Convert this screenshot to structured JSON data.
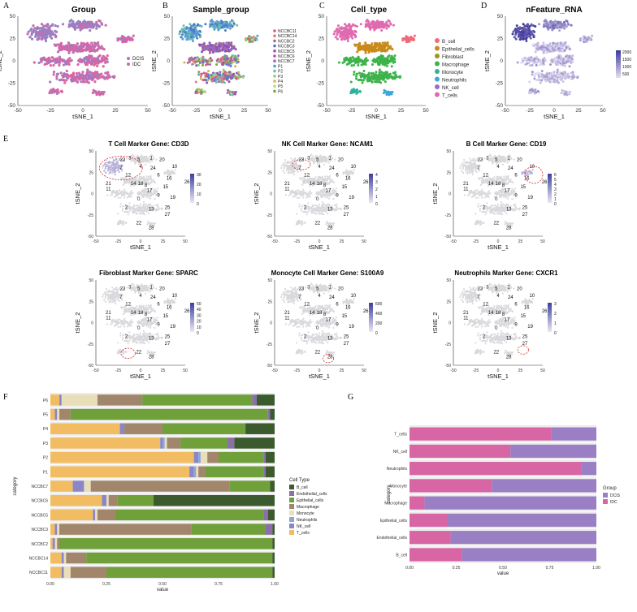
{
  "colors": {
    "DCIS": "#9b7fc4",
    "IDC": "#d866a4",
    "B_cell": "#3b5a2e",
    "Endothelial_cells": "#8a6fa8",
    "Epithelial_cells": "#6fa03a",
    "Macrophage": "#a2866c",
    "Monocyte": "#e8dfb8",
    "Neutrophils": "#8fa6d4",
    "NK_cell": "#8a86c8",
    "T_cells": "#f2bc62",
    "Fibroblast": "#c88a1a"
  },
  "panels": {
    "A": {
      "letter": "A",
      "title": "Group",
      "legend": [
        "DCIS",
        "IDC"
      ]
    },
    "B": {
      "letter": "B",
      "title": "Sample_group",
      "legend": [
        "NCCBC11",
        "NCCBC14",
        "NCCBC2",
        "NCCBC3",
        "NCCBC5",
        "NCCBC6",
        "NCCBC7",
        "P1",
        "P2",
        "P3",
        "P4",
        "P5",
        "P6"
      ],
      "legend_colors": [
        "#e05a77",
        "#d97a8f",
        "#a8698f",
        "#4a7cc9",
        "#8c55b8",
        "#c64a9a",
        "#9a6bc4",
        "#5b9bd5",
        "#6ec0ae",
        "#8ccf6a",
        "#c8b85a",
        "#b0e07a",
        "#7aa84a"
      ]
    },
    "C": {
      "letter": "C",
      "title": "Cell_type",
      "legend": [
        "B_cell",
        "Epithelial_cells",
        "Fibroblast",
        "Macrophage",
        "Monocyte",
        "Neutrophils",
        "NK_cell",
        "T_cells"
      ],
      "legend_colors": [
        "#ee6b7a",
        "#c88a1a",
        "#9a9a1a",
        "#3db34a",
        "#2cb39a",
        "#3aa8d8",
        "#9c6ad0",
        "#e06ab0"
      ]
    },
    "D": {
      "letter": "D",
      "title": "nFeature_RNA",
      "scale_ticks": [
        "2000",
        "1500",
        "1000",
        "500"
      ]
    },
    "E": {
      "letter": "E"
    },
    "F": {
      "letter": "F"
    },
    "G": {
      "letter": "G"
    }
  },
  "axes": {
    "tsne_x": "tSNE_1",
    "tsne_y": "tSNE_2",
    "xticks": [
      "-50",
      "-25",
      "0",
      "25",
      "50"
    ],
    "yticks": [
      "50",
      "25",
      "0",
      "-25",
      "-50"
    ],
    "value_label": "value",
    "category_label": "category"
  },
  "marker_panels": [
    {
      "title": "T Cell Marker Gene: CD3D",
      "scale": [
        "30",
        "20",
        "10",
        "0"
      ]
    },
    {
      "title": "NK Cell Marker Gene: NCAM1",
      "scale": [
        "4",
        "3",
        "2",
        "1",
        "0"
      ]
    },
    {
      "title": "B Cell Marker Gene: CD19",
      "scale": [
        "6",
        "5",
        "4",
        "3",
        "2",
        "1",
        "0"
      ]
    },
    {
      "title": "Fibroblast Marker Gene: SPARC",
      "scale": [
        "50",
        "40",
        "30",
        "20",
        "10",
        "0"
      ]
    },
    {
      "title": "Monocyte Cell Marker Gene: S100A9",
      "scale": [
        "600",
        "400",
        "200",
        "0"
      ]
    },
    {
      "title": "Neutrophils Marker Gene: CXCR1",
      "scale": [
        "3",
        "2",
        "1",
        "0"
      ]
    }
  ],
  "cluster_labels": [
    "23",
    "3",
    "5",
    "1",
    "20",
    "7",
    "4",
    "24",
    "10",
    "6",
    "12",
    "16",
    "26",
    "21",
    "14",
    "18",
    "8",
    "15",
    "11",
    "17",
    "9",
    "19",
    "0",
    "25",
    "2",
    "13",
    "27",
    "22",
    "28"
  ],
  "chart_data": [
    {
      "type": "bar",
      "orientation": "horizontal-stacked",
      "panel": "F",
      "xlabel": "value",
      "ylabel": "category",
      "xlim": [
        0,
        1
      ],
      "xticks": [
        "0.00",
        "0.25",
        "0.50",
        "0.75",
        "1.00"
      ],
      "legend_title": "Cell Type",
      "categories": [
        "P6",
        "P5",
        "P4",
        "P3",
        "P2",
        "P1",
        "NCCBC7",
        "NCCBC6",
        "NCCBC5",
        "NCCBC3",
        "NCCBC2",
        "NCCBC14",
        "NCCBC11"
      ],
      "series": [
        {
          "name": "T_cells",
          "values": [
            0.04,
            0.02,
            0.31,
            0.49,
            0.64,
            0.62,
            0.1,
            0.23,
            0.19,
            0.02,
            0.01,
            0.05,
            0.05
          ]
        },
        {
          "name": "NK_cell",
          "values": [
            0.01,
            0.01,
            0.02,
            0.01,
            0.02,
            0.02,
            0.05,
            0.02,
            0.01,
            0.01,
            0.01,
            0.01,
            0.01
          ]
        },
        {
          "name": "Neutrophils",
          "values": [
            0.0,
            0.0,
            0.0,
            0.01,
            0.01,
            0.01,
            0.0,
            0.0,
            0.0,
            0.0,
            0.0,
            0.0,
            0.0
          ]
        },
        {
          "name": "Monocyte",
          "values": [
            0.16,
            0.01,
            0.0,
            0.01,
            0.03,
            0.01,
            0.03,
            0.01,
            0.01,
            0.01,
            0.01,
            0.01,
            0.03
          ]
        },
        {
          "name": "Macrophage",
          "values": [
            0.2,
            0.05,
            0.17,
            0.06,
            0.05,
            0.03,
            0.62,
            0.04,
            0.08,
            0.59,
            0.01,
            0.09,
            0.16
          ]
        },
        {
          "name": "Epithelial_cells",
          "values": [
            0.49,
            0.88,
            0.37,
            0.21,
            0.2,
            0.26,
            0.18,
            0.16,
            0.66,
            0.33,
            0.95,
            0.83,
            0.74
          ]
        },
        {
          "name": "Endothelial_cells",
          "values": [
            0.02,
            0.01,
            0.0,
            0.03,
            0.01,
            0.01,
            0.0,
            0.0,
            0.02,
            0.03,
            0.0,
            0.0,
            0.0
          ]
        },
        {
          "name": "B_cell",
          "values": [
            0.08,
            0.02,
            0.13,
            0.18,
            0.04,
            0.04,
            0.02,
            0.54,
            0.03,
            0.01,
            0.01,
            0.01,
            0.01
          ]
        }
      ],
      "legend_order": [
        "B_cell",
        "Endothelial_cells",
        "Epithelial_cells",
        "Macrophage",
        "Monocyte",
        "Neutrophils",
        "NK_cell",
        "T_cells"
      ]
    },
    {
      "type": "bar",
      "orientation": "horizontal-stacked",
      "panel": "G",
      "xlabel": "value",
      "ylabel": "category",
      "xlim": [
        0,
        1
      ],
      "xticks": [
        "0.00",
        "0.25",
        "0.50",
        "0.75",
        "1.00"
      ],
      "legend_title": "Group",
      "categories": [
        "T_cells",
        "NK_cell",
        "Neutrophils",
        "Monocyte",
        "Macrophage",
        "Epithelial_cells",
        "Endothelial_cells",
        "B_cell"
      ],
      "series": [
        {
          "name": "IDC",
          "values": [
            0.76,
            0.54,
            0.92,
            0.44,
            0.08,
            0.2,
            0.22,
            0.28
          ]
        },
        {
          "name": "DCIS",
          "values": [
            0.24,
            0.46,
            0.08,
            0.56,
            0.92,
            0.8,
            0.78,
            0.72
          ]
        }
      ],
      "legend_order": [
        "DCIS",
        "IDC"
      ]
    }
  ]
}
